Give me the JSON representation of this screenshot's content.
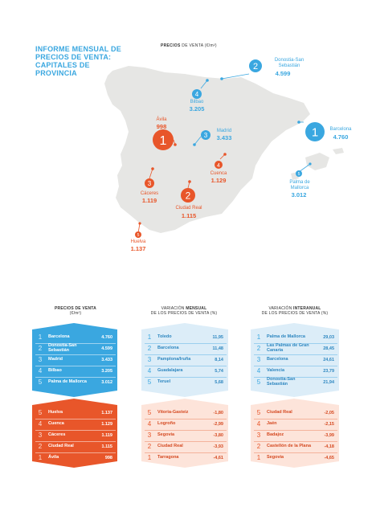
{
  "title": "INFORME MENSUAL DE PRECIOS DE VENTA: CAPITALES DE PROVINCIA",
  "map_heading": {
    "bold": "PRECIOS",
    "rest": " DE VENTA (€/m²)"
  },
  "colors": {
    "blue": "#3aa7e0",
    "red": "#e8562a",
    "land": "#e6e6e4",
    "light_blue": "#dcedf8",
    "light_red": "#fde4da"
  },
  "map_markers": [
    {
      "rank": "1",
      "name": "Barcelona",
      "value": "4.760",
      "color": "blue"
    },
    {
      "rank": "2",
      "name": "Donostia-San Sebastián",
      "value": "4.599",
      "color": "blue"
    },
    {
      "rank": "3",
      "name": "Madrid",
      "value": "3.433",
      "color": "blue"
    },
    {
      "rank": "4",
      "name": "Bilbao",
      "value": "3.205",
      "color": "blue"
    },
    {
      "rank": "5",
      "name": "Palma de Mallorca",
      "value": "3.012",
      "color": "blue"
    },
    {
      "rank": "1",
      "name": "Ávila",
      "value": "998",
      "color": "red"
    },
    {
      "rank": "2",
      "name": "Ciudad Real",
      "value": "1.115",
      "color": "red"
    },
    {
      "rank": "3",
      "name": "Cáceres",
      "value": "1.119",
      "color": "red"
    },
    {
      "rank": "4",
      "name": "Cuenca",
      "value": "1.129",
      "color": "red"
    },
    {
      "rank": "5",
      "name": "Huelva",
      "value": "1.137",
      "color": "red"
    }
  ],
  "columns": [
    {
      "heading_top": "PRECIOS DE VENTA",
      "heading_bold": "",
      "heading_sub": "(€/m²)",
      "top": [
        {
          "rank": "1",
          "name": "Barcelona",
          "value": "4.760"
        },
        {
          "rank": "2",
          "name": "Donostia-San Sebastián",
          "value": "4.599"
        },
        {
          "rank": "3",
          "name": "Madrid",
          "value": "3.433"
        },
        {
          "rank": "4",
          "name": "Bilbao",
          "value": "3.205"
        },
        {
          "rank": "5",
          "name": "Palma de Mallorca",
          "value": "3.012"
        }
      ],
      "bottom": [
        {
          "rank": "5",
          "name": "Huelva",
          "value": "1.137"
        },
        {
          "rank": "4",
          "name": "Cuenca",
          "value": "1.129"
        },
        {
          "rank": "3",
          "name": "Cáceres",
          "value": "1.119"
        },
        {
          "rank": "2",
          "name": "Ciudad Real",
          "value": "1.115"
        },
        {
          "rank": "1",
          "name": "Ávila",
          "value": "998"
        }
      ]
    },
    {
      "heading_top": "VARIACIÓN ",
      "heading_bold": "MENSUAL",
      "heading_sub": "DE LOS PRECIOS DE VENTA (%)",
      "top": [
        {
          "rank": "1",
          "name": "Toledo",
          "value": "11,95"
        },
        {
          "rank": "2",
          "name": "Barcelona",
          "value": "11,48"
        },
        {
          "rank": "3",
          "name": "Pamplona/Iruña",
          "value": "8,14"
        },
        {
          "rank": "4",
          "name": "Guadalajara",
          "value": "5,74"
        },
        {
          "rank": "5",
          "name": "Teruel",
          "value": "5,68"
        }
      ],
      "bottom": [
        {
          "rank": "5",
          "name": "Vitoria-Gasteiz",
          "value": "-1,80"
        },
        {
          "rank": "4",
          "name": "Logroño",
          "value": "-2,99"
        },
        {
          "rank": "3",
          "name": "Segovia",
          "value": "-3,80"
        },
        {
          "rank": "2",
          "name": "Ciudad Real",
          "value": "-3,93"
        },
        {
          "rank": "1",
          "name": "Tarragona",
          "value": "-4,61"
        }
      ]
    },
    {
      "heading_top": "VARIACIÓN ",
      "heading_bold": "INTERANUAL",
      "heading_sub": "DE LOS PRECIOS DE VENTA (%)",
      "top": [
        {
          "rank": "1",
          "name": "Palma de Mallorca",
          "value": "29,03"
        },
        {
          "rank": "2",
          "name": "Las Palmas de Gran Canaria",
          "value": "28,45"
        },
        {
          "rank": "3",
          "name": "Barcelona",
          "value": "24,61"
        },
        {
          "rank": "4",
          "name": "Valencia",
          "value": "23,79"
        },
        {
          "rank": "5",
          "name": "Donostia-San Sebastián",
          "value": "21,94"
        }
      ],
      "bottom": [
        {
          "rank": "5",
          "name": "Ciudad Real",
          "value": "-2,05"
        },
        {
          "rank": "4",
          "name": "Jaén",
          "value": "-2,15"
        },
        {
          "rank": "3",
          "name": "Badajoz",
          "value": "-3,99"
        },
        {
          "rank": "2",
          "name": "Castellón de la Plana",
          "value": "-4,18"
        },
        {
          "rank": "1",
          "name": "Segovia",
          "value": "-4,65"
        }
      ]
    }
  ]
}
